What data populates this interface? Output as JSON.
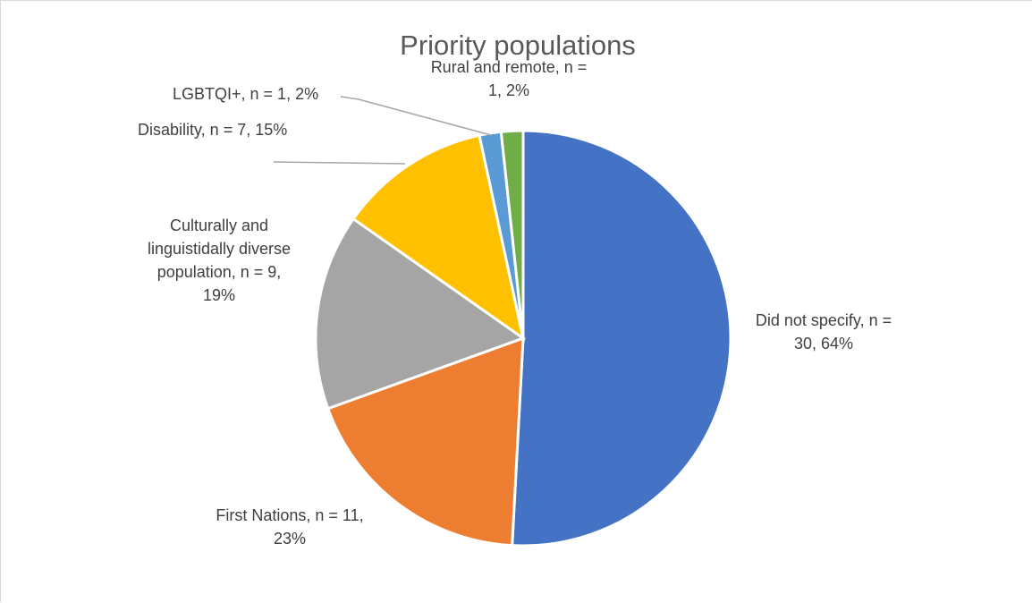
{
  "chart_data": {
    "type": "pie",
    "title": "Priority populations",
    "slices": [
      {
        "category": "Did not specify",
        "n": 30,
        "label": [
          "Did not specify, n =",
          "30, 64%"
        ],
        "color": "#4472C4"
      },
      {
        "category": "First Nations",
        "n": 11,
        "label": [
          "First Nations, n = 11,",
          "23%"
        ],
        "color": "#ED7D31"
      },
      {
        "category": "Culturally and linguistidally diverse population",
        "n": 9,
        "label": [
          "Culturally and",
          "linguistidally diverse",
          "population, n = 9,",
          "19%"
        ],
        "color": "#A5A5A5"
      },
      {
        "category": "Disability",
        "n": 7,
        "label": [
          "Disability, n = 7, 15%"
        ],
        "color": "#FFC000"
      },
      {
        "category": "LGBTQI+",
        "n": 1,
        "label": [
          "LGBTQI+, n = 1, 2%"
        ],
        "color": "#5B9BD5"
      },
      {
        "category": "Rural and remote",
        "n": 1,
        "label": [
          "Rural and remote, n =",
          "1, 2%"
        ],
        "color": "#70AD47"
      }
    ],
    "legend": "none"
  }
}
